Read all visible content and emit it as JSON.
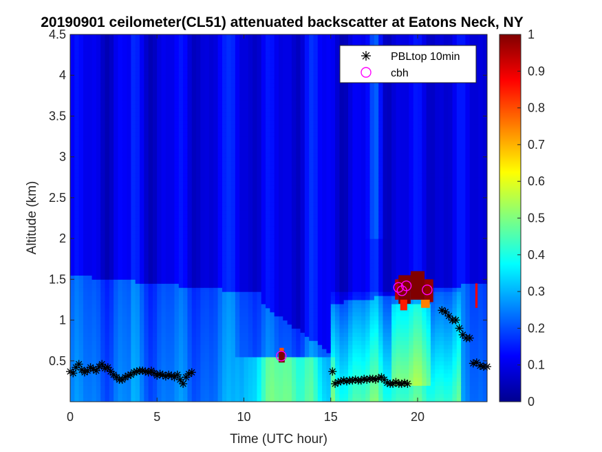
{
  "chart_data": {
    "type": "heatmap",
    "title": "20190901 ceilometer(CL51) attenuated backscatter at Eatons Neck, NY",
    "xlabel": "Time (UTC hour)",
    "ylabel": "Altitude (km)",
    "xlim": [
      0,
      24
    ],
    "ylim": [
      0,
      4.5
    ],
    "xticks": [
      0,
      5,
      10,
      15,
      20
    ],
    "yticks": [
      0.5,
      1,
      1.5,
      2,
      2.5,
      3,
      3.5,
      4,
      4.5
    ],
    "xtick_labels": [
      "0",
      "5",
      "10",
      "15",
      "20"
    ],
    "ytick_labels": [
      "0.5",
      "1",
      "1.5",
      "2",
      "2.5",
      "3",
      "3.5",
      "4",
      "4.5"
    ],
    "colorbar": {
      "range": [
        0,
        1
      ],
      "ticks": [
        0,
        0.1,
        0.2,
        0.3,
        0.4,
        0.5,
        0.6,
        0.7,
        0.8,
        0.9,
        1
      ],
      "tick_labels": [
        "0",
        "0.1",
        "0.2",
        "0.3",
        "0.4",
        "0.5",
        "0.6",
        "0.7",
        "0.8",
        "0.9",
        "1"
      ],
      "colormap": "jet"
    },
    "legend": {
      "location": "top-right",
      "entries": [
        {
          "label": "PBLtop 10min",
          "marker": "asterisk",
          "color": "#000000"
        },
        {
          "label": "cbh",
          "marker": "circle",
          "color": "#ff00ff"
        }
      ]
    },
    "series": [
      {
        "name": "PBLtop 10min",
        "marker": "asterisk",
        "color": "#000000",
        "x": [
          0.0,
          0.17,
          0.33,
          0.5,
          0.67,
          0.83,
          1.0,
          1.17,
          1.33,
          1.5,
          1.67,
          1.83,
          2.0,
          2.17,
          2.33,
          2.5,
          2.67,
          2.83,
          3.0,
          3.17,
          3.33,
          3.5,
          3.67,
          3.83,
          4.0,
          4.17,
          4.33,
          4.5,
          4.67,
          4.83,
          5.0,
          5.17,
          5.33,
          5.5,
          5.67,
          5.83,
          6.0,
          6.17,
          6.33,
          6.5,
          6.67,
          6.83,
          7.0,
          15.1,
          15.25,
          15.42,
          15.58,
          15.75,
          15.92,
          16.08,
          16.25,
          16.42,
          16.58,
          16.75,
          16.92,
          17.08,
          17.25,
          17.42,
          17.58,
          17.75,
          17.92,
          18.08,
          18.25,
          18.42,
          18.58,
          18.75,
          18.92,
          19.08,
          19.25,
          19.42,
          21.4,
          21.6,
          21.8,
          22.0,
          22.2,
          22.4,
          22.6,
          22.8,
          23.0,
          23.2,
          23.4,
          23.6,
          23.8,
          24.0
        ],
        "y": [
          0.37,
          0.35,
          0.42,
          0.46,
          0.39,
          0.36,
          0.38,
          0.42,
          0.4,
          0.38,
          0.43,
          0.46,
          0.41,
          0.42,
          0.37,
          0.33,
          0.3,
          0.27,
          0.27,
          0.3,
          0.32,
          0.33,
          0.36,
          0.37,
          0.38,
          0.38,
          0.37,
          0.36,
          0.38,
          0.35,
          0.32,
          0.34,
          0.33,
          0.31,
          0.33,
          0.32,
          0.3,
          0.33,
          0.27,
          0.22,
          0.3,
          0.34,
          0.36,
          0.37,
          0.22,
          0.24,
          0.25,
          0.26,
          0.25,
          0.26,
          0.26,
          0.27,
          0.26,
          0.26,
          0.28,
          0.27,
          0.28,
          0.28,
          0.27,
          0.29,
          0.3,
          0.27,
          0.23,
          0.22,
          0.22,
          0.24,
          0.22,
          0.22,
          0.23,
          0.22,
          1.12,
          1.1,
          1.05,
          1.0,
          1.0,
          0.9,
          0.82,
          0.78,
          0.78,
          0.47,
          0.48,
          0.44,
          0.43,
          0.43
        ]
      },
      {
        "name": "cbh",
        "marker": "circle",
        "color": "#ff00ff",
        "x": [
          12.15,
          18.9,
          19.1,
          19.35,
          20.55
        ],
        "y": [
          0.56,
          1.4,
          1.36,
          1.42,
          1.37
        ]
      }
    ],
    "backscatter_features": [
      {
        "name": "boundary layer aerosol",
        "t0": 0,
        "t1": 11.2,
        "alt_top": 1.6,
        "value": 0.2
      },
      {
        "name": "residual/shallow layer",
        "t0": 9.5,
        "t1": 15.0,
        "alt_top": 0.55,
        "value": 0.45
      },
      {
        "name": "cloud return",
        "t0": 11.9,
        "t1": 12.4,
        "alt_top": 0.62,
        "value": 1.0
      },
      {
        "name": "afternoon mixed layer",
        "t0": 15.0,
        "t1": 22.5,
        "alt_top": 1.35,
        "value": 0.38
      },
      {
        "name": "cloud layer",
        "t0": 18.7,
        "t1": 20.9,
        "alt_top": 1.6,
        "value": 1.0
      },
      {
        "name": "cloud layer",
        "t0": 23.3,
        "t1": 23.45,
        "alt_top": 1.45,
        "value": 0.9
      }
    ]
  }
}
